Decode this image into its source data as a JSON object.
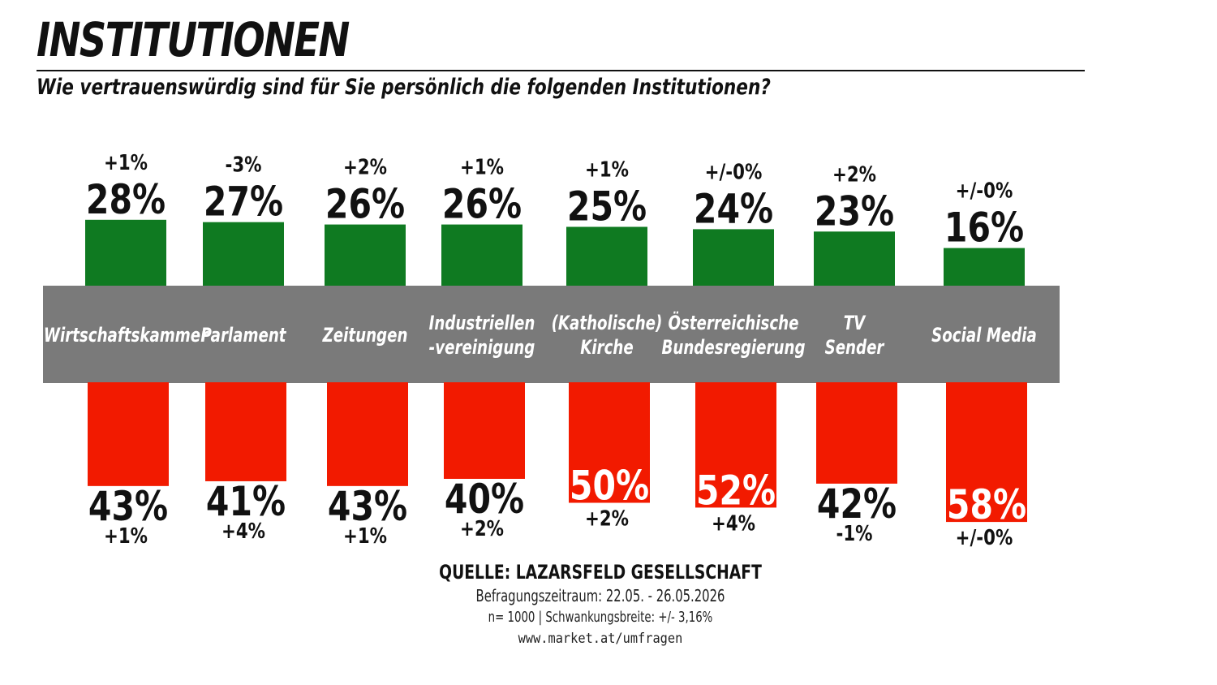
{
  "title": "INSTITUTIONEN",
  "subtitle": "Wie vertrauenswürdig sind für Sie persönlich die folgenden Institutionen?",
  "colors": {
    "trust": "#0f7a21",
    "distrust": "#f21a00",
    "band": "#7a7a7a"
  },
  "chart_data": {
    "type": "bar",
    "categories": [
      [
        "Wirtschaftskammer"
      ],
      [
        "Parlament"
      ],
      [
        "Zeitungen"
      ],
      [
        "Industriellen",
        "-vereinigung"
      ],
      [
        "(Katholische)",
        "Kirche"
      ],
      [
        "Österreichische",
        "Bundesregierung"
      ],
      [
        "TV",
        "Sender"
      ],
      [
        "Social Media"
      ]
    ],
    "series": [
      {
        "values": [
          28,
          27,
          26,
          26,
          25,
          24,
          23,
          16
        ],
        "value_labels": [
          "28%",
          "27%",
          "26%",
          "26%",
          "25%",
          "24%",
          "23%",
          "16%"
        ],
        "change_labels": [
          "+1%",
          "-3%",
          "+2%",
          "+1%",
          "+1%",
          "+/-0%",
          "+2%",
          "+/-0%"
        ]
      },
      {
        "values": [
          43,
          41,
          43,
          40,
          50,
          52,
          42,
          58
        ],
        "value_labels": [
          "43%",
          "41%",
          "43%",
          "40%",
          "50%",
          "52%",
          "42%",
          "58%"
        ],
        "change_labels": [
          "+1%",
          "+4%",
          "+1%",
          "+2%",
          "+2%",
          "+4%",
          "-1%",
          "+/-0%"
        ]
      }
    ]
  },
  "source": {
    "title": "QUELLE: LAZARSFELD GESELLSCHAFT",
    "period": "Befragungszeitraum: 22.05. - 26.05.2026",
    "sample": "n= 1000 | Schwankungsbreite: +/- 3,16%",
    "url": "www.market.at/umfragen"
  }
}
